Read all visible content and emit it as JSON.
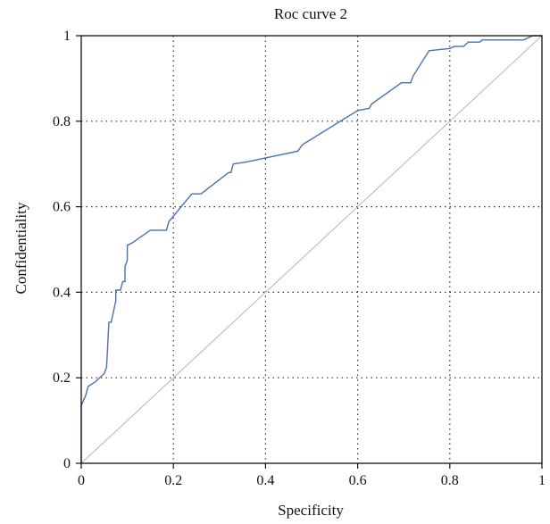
{
  "chart_data": {
    "type": "line",
    "title": "Roc curve 2",
    "xlabel": "Specificity",
    "ylabel": "Confidentiality",
    "xlim": [
      0,
      1
    ],
    "ylim": [
      0,
      1
    ],
    "x_ticks": [
      0,
      0.2,
      0.4,
      0.6,
      0.8,
      1
    ],
    "y_ticks": [
      0,
      0.2,
      0.4,
      0.6,
      0.8,
      1
    ],
    "x_tick_labels": [
      "0",
      "0.2",
      "0.4",
      "0.6",
      "0.8",
      "1"
    ],
    "y_tick_labels": [
      "0",
      "0.2",
      "0.4",
      "0.6",
      "0.8",
      "1"
    ],
    "grid": "dotted",
    "legend": "none",
    "series": [
      {
        "color": "#4a6fb5",
        "points": [
          [
            0,
            0
          ],
          [
            0,
            0.135
          ],
          [
            0.01,
            0.16
          ],
          [
            0.015,
            0.18
          ],
          [
            0.03,
            0.19
          ],
          [
            0.05,
            0.21
          ],
          [
            0.055,
            0.225
          ],
          [
            0.06,
            0.33
          ],
          [
            0.065,
            0.33
          ],
          [
            0.075,
            0.38
          ],
          [
            0.075,
            0.405
          ],
          [
            0.085,
            0.405
          ],
          [
            0.09,
            0.425
          ],
          [
            0.095,
            0.425
          ],
          [
            0.095,
            0.46
          ],
          [
            0.1,
            0.475
          ],
          [
            0.1,
            0.51
          ],
          [
            0.11,
            0.515
          ],
          [
            0.15,
            0.545
          ],
          [
            0.185,
            0.545
          ],
          [
            0.19,
            0.565
          ],
          [
            0.24,
            0.63
          ],
          [
            0.26,
            0.63
          ],
          [
            0.32,
            0.68
          ],
          [
            0.325,
            0.68
          ],
          [
            0.33,
            0.7
          ],
          [
            0.36,
            0.705
          ],
          [
            0.47,
            0.73
          ],
          [
            0.48,
            0.745
          ],
          [
            0.6,
            0.825
          ],
          [
            0.625,
            0.83
          ],
          [
            0.63,
            0.84
          ],
          [
            0.695,
            0.89
          ],
          [
            0.715,
            0.89
          ],
          [
            0.72,
            0.905
          ],
          [
            0.755,
            0.965
          ],
          [
            0.8,
            0.97
          ],
          [
            0.81,
            0.975
          ],
          [
            0.83,
            0.975
          ],
          [
            0.84,
            0.985
          ],
          [
            0.865,
            0.985
          ],
          [
            0.87,
            0.99
          ],
          [
            0.89,
            0.99
          ],
          [
            0.96,
            0.99
          ],
          [
            0.98,
            1.0
          ],
          [
            1,
            1
          ]
        ]
      },
      {
        "color": "#bbbbbb",
        "points": [
          [
            0,
            0
          ],
          [
            1,
            1
          ]
        ]
      }
    ]
  }
}
